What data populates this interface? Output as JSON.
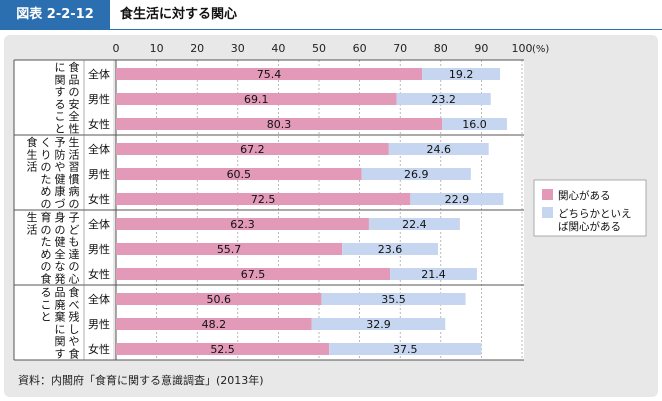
{
  "header": {
    "badge": "図表 2-2-12",
    "title": "食生活に対する関心"
  },
  "chart_data": {
    "type": "bar",
    "orientation": "horizontal",
    "stacked": true,
    "xlim": [
      0,
      100
    ],
    "x_ticks": [
      "0",
      "10",
      "20",
      "30",
      "40",
      "50",
      "60",
      "70",
      "80",
      "90",
      "100"
    ],
    "x_unit": "(%)",
    "grid": true,
    "legend_position": "right",
    "groups": [
      {
        "label_lines": [
          "食品の安全性",
          "に関すること"
        ],
        "rows": [
          "全体",
          "男性",
          "女性"
        ]
      },
      {
        "label_lines": [
          "生活習慣病の",
          "予防や健康づ",
          "くりのための",
          "食生活"
        ],
        "rows": [
          "全体",
          "男性",
          "女性"
        ]
      },
      {
        "label_lines": [
          "子ども達の心",
          "身の健全な発",
          "育のための食",
          "生活"
        ],
        "rows": [
          "全体",
          "男性",
          "女性"
        ]
      },
      {
        "label_lines": [
          "食べ残しや食",
          "品廃棄に関す",
          "ること"
        ],
        "rows": [
          "全体",
          "男性",
          "女性"
        ]
      }
    ],
    "series": [
      {
        "name": "関心がある",
        "color": "#e39ab8",
        "values": [
          75.4,
          69.1,
          80.3,
          67.2,
          60.5,
          72.5,
          62.3,
          55.7,
          67.5,
          50.6,
          48.2,
          52.5
        ]
      },
      {
        "name_lines": [
          "どちらかといえ",
          "ば関心がある"
        ],
        "color": "#c7d6f0",
        "values": [
          19.2,
          23.2,
          16.0,
          24.6,
          26.9,
          22.9,
          22.4,
          23.6,
          21.4,
          35.5,
          32.9,
          37.5
        ]
      }
    ]
  },
  "footer": {
    "source": "資料：内閣府「食育に関する意識調査」(2013年)"
  }
}
